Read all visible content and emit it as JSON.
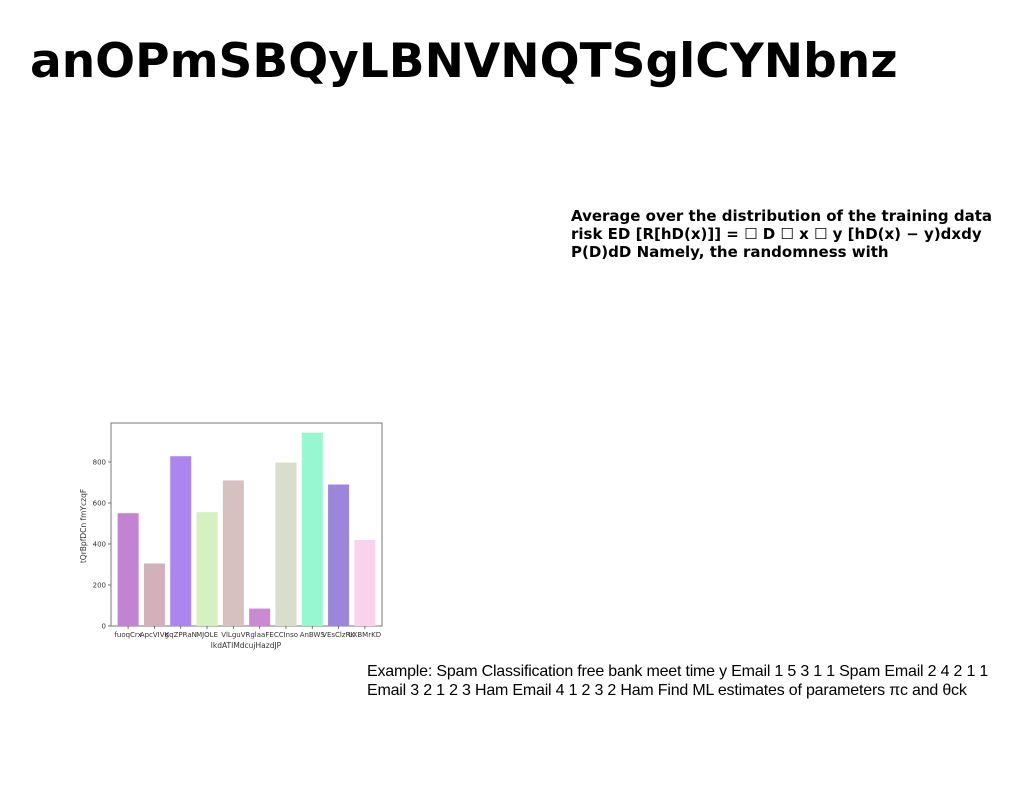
{
  "page": {
    "title": "anOPmSBQyLBNVNQTSglCYNbnz",
    "paragraph_right": "Average over the distribution of the training data risk ED [R[hD(x)]] = ☐ D ☐ x ☐ y [hD(x) − y)dxdy P(D)dD Namely, the randomness with",
    "paragraph_bottom": "Example: Spam Classification free bank meet time y Email 1 5 3 1 1 Spam Email 2 4 2 1 1 Email 3 2 1 2 3 Ham Email 4 1 2 3 2 Ham Find ML estimates of parameters πc and θck"
  },
  "chart_data": {
    "type": "bar",
    "title": "",
    "xlabel": "lkdATIMdcujHazdJP",
    "ylabel": "tQrBpfDCn fmYczqF",
    "categories": [
      "fuoqCrx",
      "ApcVIVg",
      "KqZPRaN",
      "MJOLE",
      "VlLguV",
      "RglaaFE",
      "CCInso",
      "AnBWS",
      "VEsClzRK",
      "LXBMrKD"
    ],
    "values": [
      550,
      305,
      828,
      555,
      710,
      85,
      797,
      943,
      690,
      420
    ],
    "colors": [
      "#c283d1",
      "#d4b0bb",
      "#ab86ee",
      "#d6f0c0",
      "#d6c0c0",
      "#c98ad2",
      "#d9ddcc",
      "#97f7d0",
      "#9b86dc",
      "#f9d3ec"
    ],
    "ylim": [
      0,
      990
    ],
    "yticks": [
      0,
      200,
      400,
      600,
      800
    ],
    "grid": false,
    "legend": "none"
  }
}
